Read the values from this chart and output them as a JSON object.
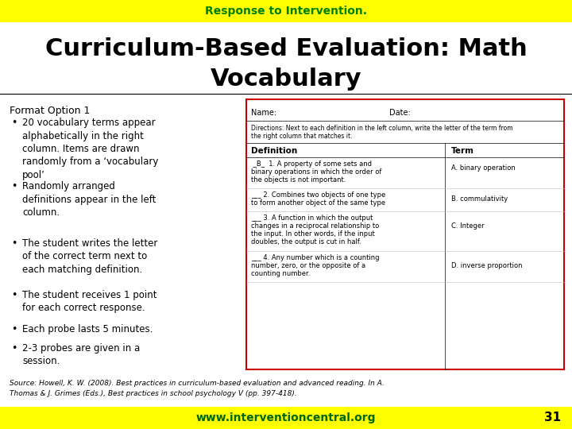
{
  "title_small": "Response to Intervention.",
  "title_main_line1": "Curriculum-Based Evaluation: Math",
  "title_main_line2": "Vocabulary",
  "title_small_color": "#008000",
  "title_main_color": "#000000",
  "header_bg": "#ffff00",
  "footer_bg": "#ffff00",
  "footer_text": "www.interventioncentral.org",
  "footer_text_color": "#006600",
  "footer_number": "31",
  "footer_number_color": "#000000",
  "format_title": "Format Option 1",
  "bullets": [
    "20 vocabulary terms appear\nalphabetically in the right\ncolumn. Items are drawn\nrandomly from a ‘vocabulary\npool’",
    "Randomly arranged\ndefinitions appear in the left\ncolumn.",
    "The student writes the letter\nof the correct term next to\neach matching definition.",
    "The student receives 1 point\nfor each correct response.",
    "Each probe lasts 5 minutes.",
    "2-3 probes are given in a\nsession."
  ],
  "source_text": "Source: Howell, K. W. (2008). Best practices in curriculum-based evaluation and advanced reading. In A.\nThomas & J. Grimes (Eds.), Best practices in school psychology V (pp. 397-418).",
  "bg_color": "#ffffff",
  "box_border_color": "#cc0000",
  "box_bg_color": "#ffffff"
}
